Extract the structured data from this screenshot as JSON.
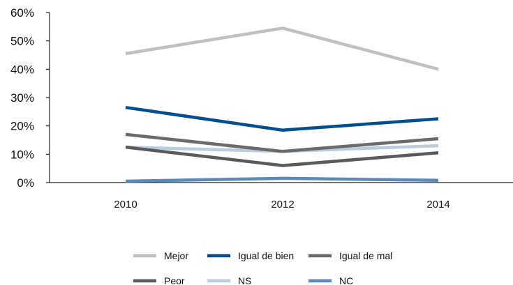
{
  "chart_data": {
    "type": "line",
    "x": [
      "2010",
      "2012",
      "2014"
    ],
    "y_ticks": [
      "0%",
      "10%",
      "20%",
      "30%",
      "40%",
      "50%",
      "60%"
    ],
    "ylim": [
      0,
      60
    ],
    "grid": false,
    "legend_position": "bottom",
    "series": [
      {
        "name": "Mejor",
        "color": "#c0c0c0",
        "values": [
          45.5,
          54.5,
          40
        ]
      },
      {
        "name": "Igual de bien",
        "color": "#034e8f",
        "values": [
          26.5,
          18.5,
          22.5
        ]
      },
      {
        "name": "Igual de mal",
        "color": "#6b6b6b",
        "values": [
          17,
          11,
          15.5
        ]
      },
      {
        "name": "Peor",
        "color": "#5a5a5a",
        "values": [
          12.5,
          6,
          10.5
        ]
      },
      {
        "name": "NS",
        "color": "#b6cde2",
        "values": [
          12.5,
          11,
          13
        ]
      },
      {
        "name": "NC",
        "color": "#5b89b9",
        "values": [
          0.5,
          1.5,
          0.8
        ]
      }
    ]
  }
}
